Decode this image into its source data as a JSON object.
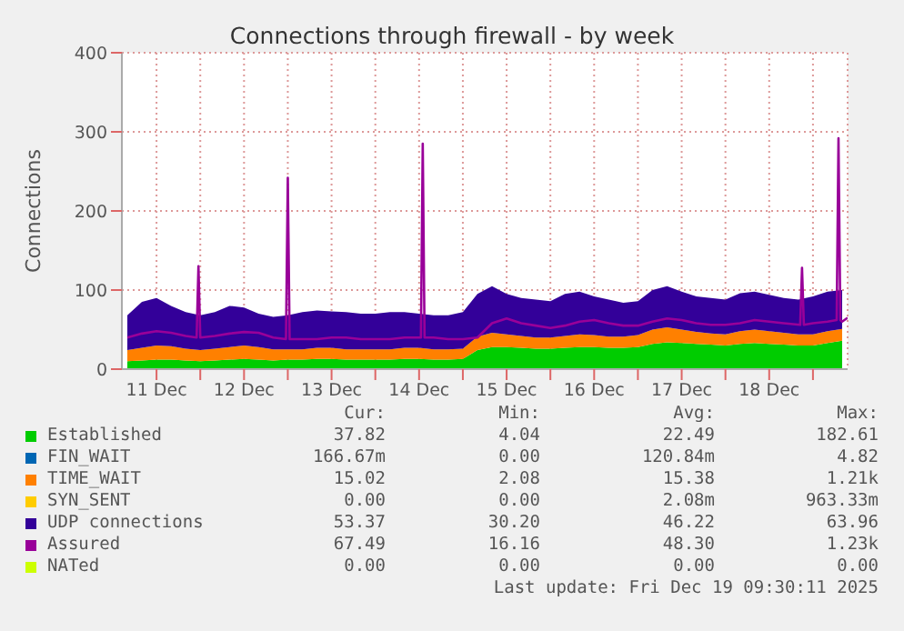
{
  "chart_data": {
    "type": "area",
    "stacked": true,
    "title": "Connections through firewall - by week",
    "ylabel": "Connections",
    "x": [
      "2025-12-11T04:00",
      "2025-12-11T08:00",
      "2025-12-11T12:00",
      "2025-12-11T16:00",
      "2025-12-11T20:00",
      "2025-12-12T00:00",
      "2025-12-12T04:00",
      "2025-12-12T08:00",
      "2025-12-12T12:00",
      "2025-12-12T16:00",
      "2025-12-12T20:00",
      "2025-12-13T00:00",
      "2025-12-13T04:00",
      "2025-12-13T08:00",
      "2025-12-13T12:00",
      "2025-12-13T16:00",
      "2025-12-13T20:00",
      "2025-12-14T00:00",
      "2025-12-14T04:00",
      "2025-12-14T08:00",
      "2025-12-14T12:00",
      "2025-12-14T16:00",
      "2025-12-14T20:00",
      "2025-12-15T00:00",
      "2025-12-15T04:00",
      "2025-12-15T08:00",
      "2025-12-15T12:00",
      "2025-12-15T16:00",
      "2025-12-15T20:00",
      "2025-12-16T00:00",
      "2025-12-16T04:00",
      "2025-12-16T08:00",
      "2025-12-16T12:00",
      "2025-12-16T16:00",
      "2025-12-16T20:00",
      "2025-12-17T00:00",
      "2025-12-17T04:00",
      "2025-12-17T08:00",
      "2025-12-17T12:00",
      "2025-12-17T16:00",
      "2025-12-17T20:00",
      "2025-12-18T00:00",
      "2025-12-18T04:00",
      "2025-12-18T08:00",
      "2025-12-18T12:00",
      "2025-12-18T16:00",
      "2025-12-18T20:00",
      "2025-12-19T00:00",
      "2025-12-19T04:00",
      "2025-12-19T08:00"
    ],
    "series": [
      {
        "name": "Established",
        "color": "#00cc00",
        "values": [
          10,
          11,
          12,
          12,
          11,
          10,
          11,
          12,
          13,
          12,
          11,
          12,
          12,
          13,
          13,
          12,
          12,
          12,
          12,
          13,
          13,
          12,
          12,
          13,
          24,
          28,
          28,
          27,
          26,
          26,
          27,
          28,
          28,
          27,
          27,
          28,
          32,
          34,
          33,
          32,
          31,
          30,
          32,
          33,
          32,
          31,
          30,
          30,
          33,
          36
        ]
      },
      {
        "name": "FIN_WAIT",
        "color": "#0066b3",
        "values": [
          null,
          null,
          null,
          null,
          null,
          null,
          null,
          null,
          null,
          null,
          null,
          null,
          null,
          null,
          null,
          null,
          null,
          null,
          null,
          null,
          null,
          null,
          null,
          null,
          null,
          null,
          null,
          null,
          null,
          null,
          null,
          null,
          null,
          null,
          null,
          null,
          null,
          null,
          null,
          null,
          null,
          null,
          null,
          null,
          null,
          null,
          null,
          null,
          null,
          null
        ]
      },
      {
        "name": "TIME_WAIT",
        "color": "#ff8000",
        "values": [
          14,
          16,
          18,
          17,
          15,
          14,
          15,
          16,
          17,
          16,
          14,
          13,
          13,
          14,
          14,
          13,
          13,
          13,
          13,
          14,
          14,
          13,
          13,
          13,
          17,
          18,
          16,
          15,
          14,
          14,
          15,
          16,
          15,
          14,
          14,
          15,
          18,
          19,
          17,
          15,
          14,
          14,
          16,
          17,
          16,
          15,
          14,
          14,
          15,
          15
        ]
      },
      {
        "name": "SYN_SENT",
        "color": "#ffcc00",
        "values": [
          null,
          null,
          null,
          null,
          null,
          null,
          null,
          null,
          null,
          null,
          null,
          null,
          null,
          null,
          null,
          null,
          null,
          null,
          null,
          null,
          null,
          null,
          null,
          null,
          null,
          null,
          null,
          null,
          null,
          null,
          null,
          null,
          null,
          null,
          null,
          null,
          null,
          null,
          null,
          null,
          null,
          null,
          null,
          null,
          null,
          null,
          null,
          null,
          null,
          null
        ]
      },
      {
        "name": "UDP connections",
        "color": "#330099",
        "values": [
          44,
          58,
          60,
          51,
          46,
          44,
          46,
          52,
          48,
          42,
          41,
          43,
          47,
          47,
          46,
          47,
          45,
          45,
          47,
          45,
          43,
          43,
          43,
          46,
          54,
          59,
          51,
          48,
          48,
          46,
          53,
          54,
          49,
          47,
          43,
          43,
          50,
          52,
          48,
          45,
          45,
          44,
          48,
          48,
          46,
          44,
          44,
          48,
          50,
          49
        ]
      },
      {
        "name": "Assured",
        "type": "line",
        "color": "#990099",
        "x": [
          "2025-12-11T04:00",
          "2025-12-11T08:00",
          "2025-12-11T12:00",
          "2025-12-11T16:00",
          "2025-12-11T20:00",
          "2025-12-11T23:00",
          "2025-12-11T23:30",
          "2025-12-12T00:00",
          "2025-12-12T04:00",
          "2025-12-12T08:00",
          "2025-12-12T12:00",
          "2025-12-12T16:00",
          "2025-12-12T20:00",
          "2025-12-12T23:30",
          "2025-12-13T00:00",
          "2025-12-13T00:30",
          "2025-12-13T04:00",
          "2025-12-13T08:00",
          "2025-12-13T12:00",
          "2025-12-13T16:00",
          "2025-12-13T20:00",
          "2025-12-14T00:00",
          "2025-12-14T04:00",
          "2025-12-14T08:00",
          "2025-12-14T12:30",
          "2025-12-14T13:00",
          "2025-12-14T13:30",
          "2025-12-14T16:00",
          "2025-12-14T20:00",
          "2025-12-15T00:00",
          "2025-12-15T04:00",
          "2025-12-15T08:00",
          "2025-12-15T12:00",
          "2025-12-15T16:00",
          "2025-12-15T20:00",
          "2025-12-16T00:00",
          "2025-12-16T04:00",
          "2025-12-16T08:00",
          "2025-12-16T12:00",
          "2025-12-16T16:00",
          "2025-12-16T20:00",
          "2025-12-17T00:00",
          "2025-12-17T04:00",
          "2025-12-17T08:00",
          "2025-12-17T12:00",
          "2025-12-17T16:00",
          "2025-12-17T20:00",
          "2025-12-18T00:00",
          "2025-12-18T04:00",
          "2025-12-18T08:00",
          "2025-12-18T12:00",
          "2025-12-18T16:00",
          "2025-12-18T20:30",
          "2025-12-18T21:00",
          "2025-12-18T21:30",
          "2025-12-19T00:00",
          "2025-12-19T04:00",
          "2025-12-19T06:30",
          "2025-12-19T07:00",
          "2025-12-19T07:30",
          "2025-12-19T08:00",
          "2025-12-19T09:30"
        ],
        "values": [
          40,
          45,
          48,
          46,
          42,
          40,
          130,
          40,
          42,
          45,
          47,
          46,
          40,
          38,
          242,
          38,
          38,
          38,
          40,
          40,
          38,
          38,
          38,
          40,
          40,
          285,
          40,
          40,
          38,
          38,
          40,
          58,
          64,
          58,
          55,
          52,
          55,
          60,
          62,
          58,
          55,
          55,
          60,
          64,
          62,
          58,
          56,
          56,
          58,
          62,
          60,
          58,
          56,
          128,
          56,
          58,
          60,
          62,
          292,
          62,
          60,
          65
        ]
      },
      {
        "name": "NATed",
        "type": "line",
        "color": "#ccff00",
        "values": [
          null,
          null,
          null,
          null,
          null,
          null,
          null,
          null,
          null,
          null,
          null,
          null,
          null,
          null,
          null,
          null,
          null,
          null,
          null,
          null,
          null,
          null,
          null,
          null,
          null,
          null,
          null,
          null,
          null,
          null,
          null,
          null,
          null,
          null,
          null,
          null,
          null,
          null,
          null,
          null,
          null,
          null,
          null,
          null,
          null,
          null,
          null,
          null,
          null,
          null
        ]
      }
    ],
    "xlim": [
      "2025-12-11T02:30",
      "2025-12-19T09:30"
    ],
    "xticks": [
      {
        "value": "2025-12-11T12:00",
        "label": "11 Dec"
      },
      {
        "value": "2025-12-12T00:00",
        "label": null
      },
      {
        "value": "2025-12-12T12:00",
        "label": "12 Dec"
      },
      {
        "value": "2025-12-13T00:00",
        "label": null
      },
      {
        "value": "2025-12-13T12:00",
        "label": "13 Dec"
      },
      {
        "value": "2025-12-14T00:00",
        "label": null
      },
      {
        "value": "2025-12-14T12:00",
        "label": "14 Dec"
      },
      {
        "value": "2025-12-15T00:00",
        "label": null
      },
      {
        "value": "2025-12-15T12:00",
        "label": "15 Dec"
      },
      {
        "value": "2025-12-16T00:00",
        "label": null
      },
      {
        "value": "2025-12-16T12:00",
        "label": "16 Dec"
      },
      {
        "value": "2025-12-17T00:00",
        "label": null
      },
      {
        "value": "2025-12-17T12:00",
        "label": "17 Dec"
      },
      {
        "value": "2025-12-18T00:00",
        "label": null
      },
      {
        "value": "2025-12-18T12:00",
        "label": "18 Dec"
      },
      {
        "value": "2025-12-19T00:00",
        "label": null
      }
    ],
    "ylim": [
      0,
      400
    ],
    "yticks": [
      0,
      100,
      200,
      300,
      400
    ],
    "grid": true,
    "legend": "bottom",
    "marker": "none",
    "annotations": [
      "Cur:",
      "Min:",
      "Avg:",
      "Max:",
      "37.82",
      "4.04",
      "22.49",
      "182.61",
      "166.67m",
      "0.00",
      "120.84m",
      "4.82",
      "15.02",
      "2.08",
      "15.38",
      "1.21k",
      "0.00",
      "0.00",
      "2.08m",
      "963.33m",
      "53.37",
      "30.20",
      "46.22",
      "63.96",
      "67.49",
      "16.16",
      "48.30",
      "1.23k",
      "0.00",
      "0.00",
      "0.00",
      "0.00",
      "Last update: Fri Dec 19 09:30:11 2025"
    ]
  }
}
